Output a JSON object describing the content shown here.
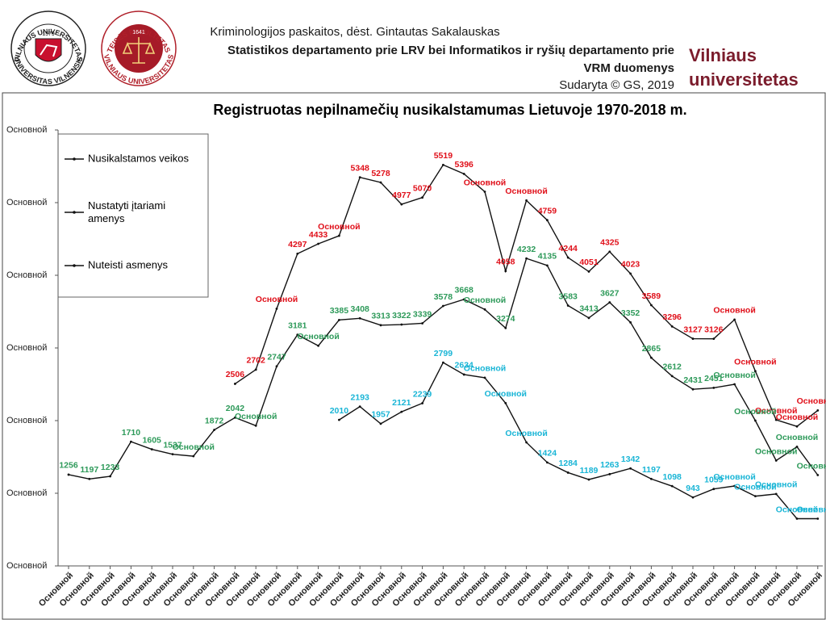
{
  "header": {
    "logo1_top": "VILNIAUS UNIVERSITETAS",
    "logo1_year": "1579",
    "logo1_bottom": "UNIVERSITAS VILNENSIS",
    "logo2_top": "TEISĖS FAKULTETAS",
    "logo2_year": "1641",
    "logo2_bottom": "VILNIAUS UNIVERSITETAS",
    "line1": "Kriminologijos paskaitos, dėst. Gintautas Sakalauskas",
    "line2": "Statistikos departamento prie LRV bei Informatikos ir ryšių departamento prie",
    "line3": "VRM duomenys",
    "line4": "Sudaryta © GS, 2019",
    "brand1": "Vilniaus",
    "brand2": "universitetas"
  },
  "chart_data": {
    "type": "line",
    "title": "Registruotas nepilnamečių nusikalstamumas Lietuvoje 1970-2018 m.",
    "categories": [
      "Основной",
      "Основной",
      "Основной",
      "Основной",
      "Основной",
      "Основной",
      "Основной",
      "Основной",
      "Основной",
      "Основной",
      "Основной",
      "Основной",
      "Основной",
      "Основной",
      "Основной",
      "Основной",
      "Основной",
      "Основной",
      "Основной",
      "Основной",
      "Основной",
      "Основной",
      "Основной",
      "Основной",
      "Основной",
      "Основной",
      "Основной",
      "Основной",
      "Основной",
      "Основной",
      "Основной",
      "Основной",
      "Основной",
      "Основной",
      "Основной",
      "Основной",
      "Основной"
    ],
    "ylim": [
      0,
      6000
    ],
    "yticks": [
      {
        "value": 0,
        "label": "Основной"
      },
      {
        "value": 1000,
        "label": "Основной"
      },
      {
        "value": 2000,
        "label": "Основной"
      },
      {
        "value": 3000,
        "label": "Основной"
      },
      {
        "value": 4000,
        "label": "Основной"
      },
      {
        "value": 5000,
        "label": "Основной"
      },
      {
        "value": 6000,
        "label": "Основной"
      }
    ],
    "legend": "upper left",
    "series": [
      {
        "name": "Nusikalstamos veikos",
        "color": "#111111",
        "label_color": "#e0101a",
        "values": [
          null,
          null,
          null,
          null,
          null,
          null,
          null,
          null,
          2506,
          2702,
          3540,
          4297,
          4433,
          4544,
          5348,
          5278,
          4977,
          5070,
          5519,
          5396,
          5150,
          4058,
          5030,
          4759,
          4244,
          4051,
          4325,
          4023,
          3589,
          3296,
          3127,
          3126,
          3390,
          2680,
          2010,
          1920,
          2140
        ],
        "value_labels": [
          null,
          null,
          null,
          null,
          null,
          null,
          null,
          null,
          "2506",
          "2702",
          "Основной",
          "4297",
          "4433",
          "Основной",
          "5348",
          "5278",
          "4977",
          "5070",
          "5519",
          "5396",
          "Основной",
          "4058",
          "Основной",
          "4759",
          "4244",
          "4051",
          "4325",
          "4023",
          "3589",
          "3296",
          "3127",
          "3126",
          "Основной",
          "Основной",
          "Основной",
          "Основной",
          "Основной"
        ]
      },
      {
        "name": "Nustatyti įtariami amenys",
        "color": "#111111",
        "label_color": "#2e9a5a",
        "values": [
          1256,
          1197,
          1233,
          1710,
          1605,
          1537,
          1510,
          1872,
          2042,
          1930,
          2747,
          3181,
          3030,
          3385,
          3408,
          3313,
          3322,
          3339,
          3578,
          3668,
          3530,
          3274,
          4232,
          4135,
          3583,
          3413,
          3627,
          3352,
          2865,
          2612,
          2431,
          2451,
          2500,
          2000,
          1450,
          1640,
          1250
        ],
        "value_labels": [
          "1256",
          "1197",
          "1233",
          "1710",
          "1605",
          "1537",
          "Основной",
          "1872",
          "2042",
          "Основной",
          "2747",
          "3181",
          "Основной",
          "3385",
          "3408",
          "3313",
          "3322",
          "3339",
          "3578",
          "3668",
          "Основной",
          "3274",
          "4232",
          "4135",
          "3583",
          "3413",
          "3627",
          "3352",
          "2865",
          "2612",
          "2431",
          "2451",
          "Основной",
          "Основной",
          "Основной",
          "Основной",
          "Основной"
        ]
      },
      {
        "name": "Nuteisti asmenys",
        "color": "#111111",
        "label_color": "#19b5d6",
        "values": [
          null,
          null,
          null,
          null,
          null,
          null,
          null,
          null,
          null,
          null,
          null,
          null,
          null,
          2010,
          2193,
          1957,
          2121,
          2239,
          2799,
          2634,
          2590,
          2240,
          1700,
          1424,
          1284,
          1189,
          1263,
          1342,
          1197,
          1098,
          943,
          1059,
          1100,
          960,
          990,
          650,
          650
        ],
        "value_labels": [
          null,
          null,
          null,
          null,
          null,
          null,
          null,
          null,
          null,
          null,
          null,
          null,
          null,
          "2010",
          "2193",
          "1957",
          "2121",
          "2239",
          "2799",
          "2634",
          "Основной",
          "Основной",
          "Основной",
          "1424",
          "1284",
          "1189",
          "1263",
          "1342",
          "1197",
          "1098",
          "943",
          "1059",
          "Основной",
          "Основной",
          "Основной",
          "Основной",
          "Основной"
        ]
      }
    ]
  }
}
